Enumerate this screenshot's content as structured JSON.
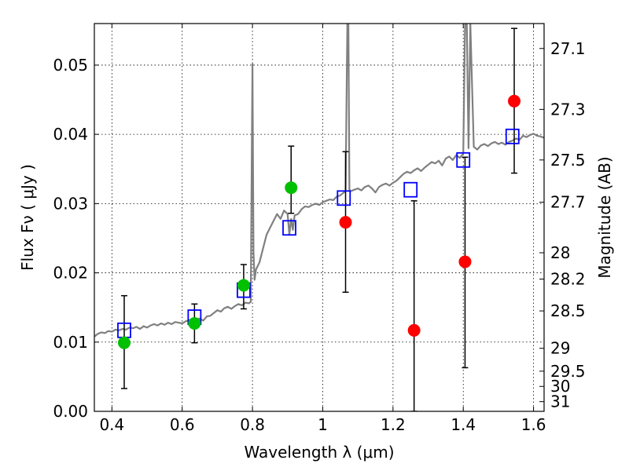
{
  "chart_data": {
    "type": "scatter",
    "xlabel": "Wavelength  λ (μm)",
    "ylabel": "Flux  Fν  ( μJy )",
    "ylabel_right": "Magnitude (AB)",
    "xlim": [
      0.35,
      1.63
    ],
    "ylim": [
      0.0,
      0.056
    ],
    "grid": true,
    "x_ticks": [
      {
        "value": 0.4,
        "label": "0.4"
      },
      {
        "value": 0.6,
        "label": "0.6"
      },
      {
        "value": 0.8,
        "label": "0.8"
      },
      {
        "value": 1.0,
        "label": "1"
      },
      {
        "value": 1.2,
        "label": "1.2"
      },
      {
        "value": 1.4,
        "label": "1.4"
      },
      {
        "value": 1.6,
        "label": "1.6"
      }
    ],
    "y_ticks": [
      {
        "value": 0.0,
        "label": "0.00"
      },
      {
        "value": 0.01,
        "label": "0.01"
      },
      {
        "value": 0.02,
        "label": "0.02"
      },
      {
        "value": 0.03,
        "label": "0.03"
      },
      {
        "value": 0.04,
        "label": "0.04"
      },
      {
        "value": 0.05,
        "label": "0.05"
      }
    ],
    "right_ticks": [
      {
        "flux": 0.0524,
        "label": "27.1"
      },
      {
        "flux": 0.0436,
        "label": "27.3"
      },
      {
        "flux": 0.0363,
        "label": "27.5"
      },
      {
        "flux": 0.0302,
        "label": "27.7"
      },
      {
        "flux": 0.0229,
        "label": "28"
      },
      {
        "flux": 0.0191,
        "label": "28.2"
      },
      {
        "flux": 0.0145,
        "label": "28.5"
      },
      {
        "flux": 0.0091,
        "label": "29"
      },
      {
        "flux": 0.0058,
        "label": "29.5"
      },
      {
        "flux": 0.0036,
        "label": "30"
      },
      {
        "flux": 0.0014,
        "label": "31"
      }
    ],
    "series": [
      {
        "kind": "template_spectrum",
        "color": "#808080",
        "x": [
          0.35,
          0.36,
          0.37,
          0.38,
          0.39,
          0.4,
          0.41,
          0.42,
          0.43,
          0.44,
          0.45,
          0.46,
          0.47,
          0.48,
          0.49,
          0.5,
          0.51,
          0.52,
          0.53,
          0.54,
          0.55,
          0.56,
          0.57,
          0.58,
          0.59,
          0.6,
          0.61,
          0.62,
          0.63,
          0.64,
          0.65,
          0.66,
          0.67,
          0.68,
          0.69,
          0.7,
          0.71,
          0.72,
          0.73,
          0.74,
          0.75,
          0.76,
          0.77,
          0.78,
          0.79,
          0.795,
          0.8,
          0.803,
          0.806,
          0.81,
          0.82,
          0.83,
          0.84,
          0.85,
          0.86,
          0.87,
          0.88,
          0.89,
          0.9,
          0.905,
          0.91,
          0.915,
          0.92,
          0.93,
          0.94,
          0.95,
          0.96,
          0.97,
          0.98,
          0.99,
          1.0,
          1.01,
          1.02,
          1.03,
          1.04,
          1.05,
          1.06,
          1.065,
          1.07,
          1.073,
          1.076,
          1.08,
          1.09,
          1.1,
          1.11,
          1.12,
          1.13,
          1.14,
          1.15,
          1.16,
          1.17,
          1.18,
          1.19,
          1.2,
          1.21,
          1.22,
          1.23,
          1.24,
          1.25,
          1.26,
          1.27,
          1.28,
          1.29,
          1.3,
          1.31,
          1.32,
          1.33,
          1.34,
          1.35,
          1.36,
          1.37,
          1.38,
          1.39,
          1.4,
          1.405,
          1.41,
          1.415,
          1.42,
          1.43,
          1.44,
          1.45,
          1.46,
          1.47,
          1.48,
          1.49,
          1.5,
          1.51,
          1.52,
          1.53,
          1.54,
          1.55,
          1.56,
          1.57,
          1.58,
          1.59,
          1.6,
          1.61,
          1.62,
          1.63
        ],
        "values": [
          0.0108,
          0.0112,
          0.0114,
          0.0113,
          0.0116,
          0.0115,
          0.0118,
          0.0117,
          0.0119,
          0.0118,
          0.0121,
          0.012,
          0.0122,
          0.0119,
          0.0123,
          0.0121,
          0.0124,
          0.0126,
          0.0124,
          0.0127,
          0.0125,
          0.0128,
          0.0126,
          0.0129,
          0.0128,
          0.0127,
          0.013,
          0.0132,
          0.0129,
          0.0133,
          0.0134,
          0.0131,
          0.0137,
          0.0138,
          0.0142,
          0.0146,
          0.0144,
          0.0149,
          0.0151,
          0.0148,
          0.0152,
          0.0155,
          0.0153,
          0.0157,
          0.0156,
          0.0158,
          0.0502,
          0.023,
          0.019,
          0.0205,
          0.0215,
          0.0235,
          0.0255,
          0.0265,
          0.0275,
          0.0285,
          0.0278,
          0.029,
          0.0285,
          0.0255,
          0.0278,
          0.0262,
          0.0283,
          0.0285,
          0.0292,
          0.0296,
          0.0295,
          0.0298,
          0.03,
          0.0298,
          0.0302,
          0.0304,
          0.0306,
          0.0305,
          0.031,
          0.0312,
          0.0316,
          0.0318,
          0.056,
          0.056,
          0.032,
          0.0318,
          0.032,
          0.0322,
          0.0319,
          0.0324,
          0.0326,
          0.0322,
          0.0316,
          0.0324,
          0.0327,
          0.0329,
          0.0326,
          0.033,
          0.0333,
          0.0338,
          0.0343,
          0.0346,
          0.0344,
          0.0348,
          0.0351,
          0.0347,
          0.0352,
          0.0356,
          0.036,
          0.0358,
          0.0362,
          0.0355,
          0.0365,
          0.0368,
          0.0363,
          0.037,
          0.0366,
          0.0372,
          0.056,
          0.056,
          0.038,
          0.056,
          0.0382,
          0.0378,
          0.0384,
          0.0386,
          0.0383,
          0.0387,
          0.0389,
          0.0386,
          0.0388,
          0.0385,
          0.0389,
          0.0391,
          0.0394,
          0.0392,
          0.0398,
          0.0396,
          0.0399,
          0.0401,
          0.0398,
          0.0397,
          0.0395
        ]
      },
      {
        "kind": "model_photometry",
        "marker": "open-square",
        "color": "#0000ff",
        "x": [
          0.435,
          0.635,
          0.775,
          0.905,
          1.06,
          1.25,
          1.4,
          1.54
        ],
        "values": [
          0.0117,
          0.0136,
          0.0175,
          0.0265,
          0.0308,
          0.032,
          0.0363,
          0.0397
        ]
      },
      {
        "kind": "detections",
        "marker": "filled-circle",
        "color": "#00c000",
        "x": [
          0.435,
          0.635,
          0.775,
          0.91
        ],
        "values": [
          0.0099,
          0.0127,
          0.0182,
          0.0323
        ],
        "err_low": [
          0.0033,
          0.0099,
          0.0148,
          0.0286
        ],
        "err_high": [
          0.0167,
          0.0155,
          0.0212,
          0.0383
        ]
      },
      {
        "kind": "non_detections",
        "marker": "filled-circle",
        "color": "#ff0000",
        "x": [
          1.065,
          1.26,
          1.405,
          1.545
        ],
        "values": [
          0.0273,
          0.0117,
          0.0216,
          0.0448
        ],
        "err_low": [
          0.0172,
          0.0,
          0.0063,
          0.0344
        ],
        "err_high": [
          0.0375,
          0.0304,
          0.0367,
          0.0553
        ]
      }
    ]
  }
}
